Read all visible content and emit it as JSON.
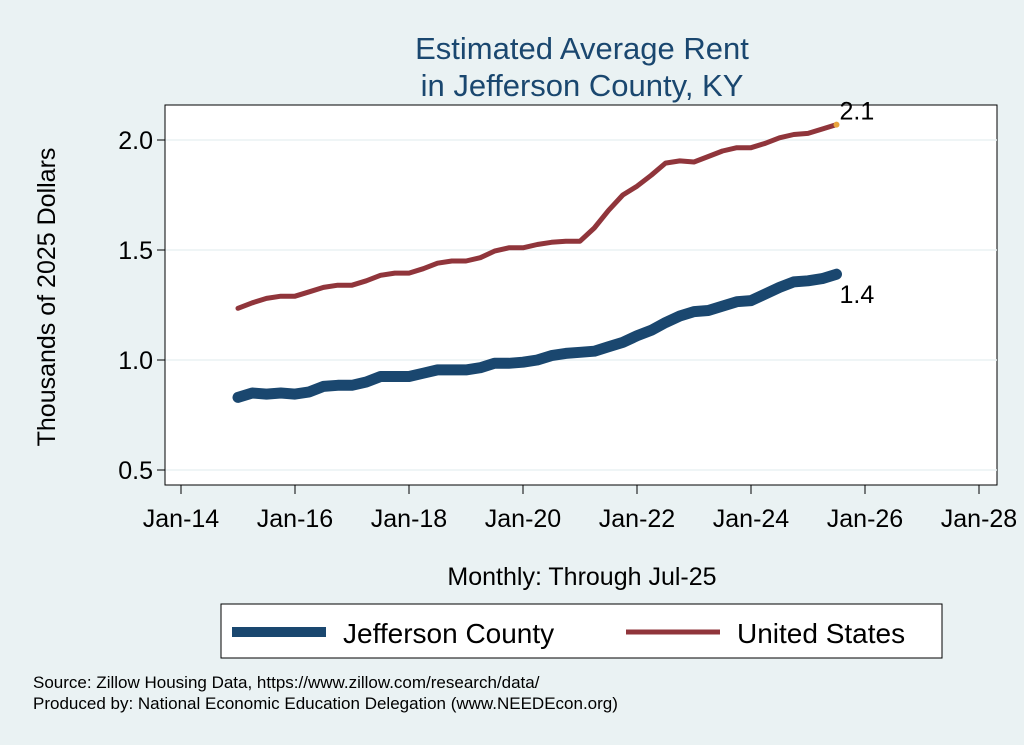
{
  "chart_data": {
    "type": "line",
    "title": [
      "Estimated Average Rent",
      "in Jefferson County, KY"
    ],
    "ylabel": "Thousands of 2025 Dollars",
    "xlabel": "Monthly: Through Jul-25",
    "ylim": [
      0.5,
      2.1
    ],
    "xlim": [
      "2014-01",
      "2028-01"
    ],
    "y_ticks": [
      0.5,
      1.0,
      1.5,
      2.0
    ],
    "y_tick_labels": [
      "0.5",
      "1.0",
      "1.5",
      "2.0"
    ],
    "x_ticks": [
      "2014-01",
      "2016-01",
      "2018-01",
      "2020-01",
      "2022-01",
      "2024-01",
      "2026-01",
      "2028-01"
    ],
    "x_tick_labels": [
      "Jan-14",
      "Jan-16",
      "Jan-18",
      "Jan-20",
      "Jan-22",
      "Jan-24",
      "Jan-26",
      "Jan-28"
    ],
    "grid": true,
    "legend_placement": "bottom",
    "series": [
      {
        "name": "Jefferson County",
        "color": "#1a476f",
        "end_label": "1.4",
        "x": [
          "2015-01",
          "2015-04",
          "2015-07",
          "2015-10",
          "2016-01",
          "2016-04",
          "2016-07",
          "2016-10",
          "2017-01",
          "2017-04",
          "2017-07",
          "2017-10",
          "2018-01",
          "2018-04",
          "2018-07",
          "2018-10",
          "2019-01",
          "2019-04",
          "2019-07",
          "2019-10",
          "2020-01",
          "2020-04",
          "2020-07",
          "2020-10",
          "2021-01",
          "2021-04",
          "2021-07",
          "2021-10",
          "2022-01",
          "2022-04",
          "2022-07",
          "2022-10",
          "2023-01",
          "2023-04",
          "2023-07",
          "2023-10",
          "2024-01",
          "2024-04",
          "2024-07",
          "2024-10",
          "2025-01",
          "2025-04",
          "2025-07"
        ],
        "values": [
          0.83,
          0.85,
          0.845,
          0.85,
          0.845,
          0.855,
          0.88,
          0.885,
          0.885,
          0.9,
          0.925,
          0.925,
          0.925,
          0.94,
          0.955,
          0.955,
          0.955,
          0.965,
          0.985,
          0.985,
          0.99,
          1.0,
          1.02,
          1.03,
          1.035,
          1.04,
          1.06,
          1.08,
          1.11,
          1.135,
          1.17,
          1.2,
          1.22,
          1.225,
          1.245,
          1.265,
          1.27,
          1.3,
          1.33,
          1.355,
          1.36,
          1.37,
          1.39
        ]
      },
      {
        "name": "United States",
        "color": "#90353b",
        "end_label": "2.1",
        "x": [
          "2015-01",
          "2015-04",
          "2015-07",
          "2015-10",
          "2016-01",
          "2016-04",
          "2016-07",
          "2016-10",
          "2017-01",
          "2017-04",
          "2017-07",
          "2017-10",
          "2018-01",
          "2018-04",
          "2018-07",
          "2018-10",
          "2019-01",
          "2019-04",
          "2019-07",
          "2019-10",
          "2020-01",
          "2020-04",
          "2020-07",
          "2020-10",
          "2021-01",
          "2021-04",
          "2021-07",
          "2021-10",
          "2022-01",
          "2022-04",
          "2022-07",
          "2022-10",
          "2023-01",
          "2023-04",
          "2023-07",
          "2023-10",
          "2024-01",
          "2024-04",
          "2024-07",
          "2024-10",
          "2025-01",
          "2025-04",
          "2025-07"
        ],
        "values": [
          1.235,
          1.26,
          1.28,
          1.29,
          1.29,
          1.31,
          1.33,
          1.34,
          1.34,
          1.36,
          1.385,
          1.395,
          1.395,
          1.415,
          1.44,
          1.45,
          1.45,
          1.465,
          1.495,
          1.51,
          1.51,
          1.525,
          1.535,
          1.54,
          1.54,
          1.6,
          1.68,
          1.75,
          1.79,
          1.84,
          1.895,
          1.905,
          1.9,
          1.925,
          1.95,
          1.965,
          1.965,
          1.985,
          2.01,
          2.025,
          2.03,
          2.05,
          2.07
        ]
      }
    ]
  },
  "source_lines": [
    "Source: Zillow Housing Data, https://www.zillow.com/research/data/",
    "Produced by: National Economic Education Delegation (www.NEEDEcon.org)"
  ]
}
